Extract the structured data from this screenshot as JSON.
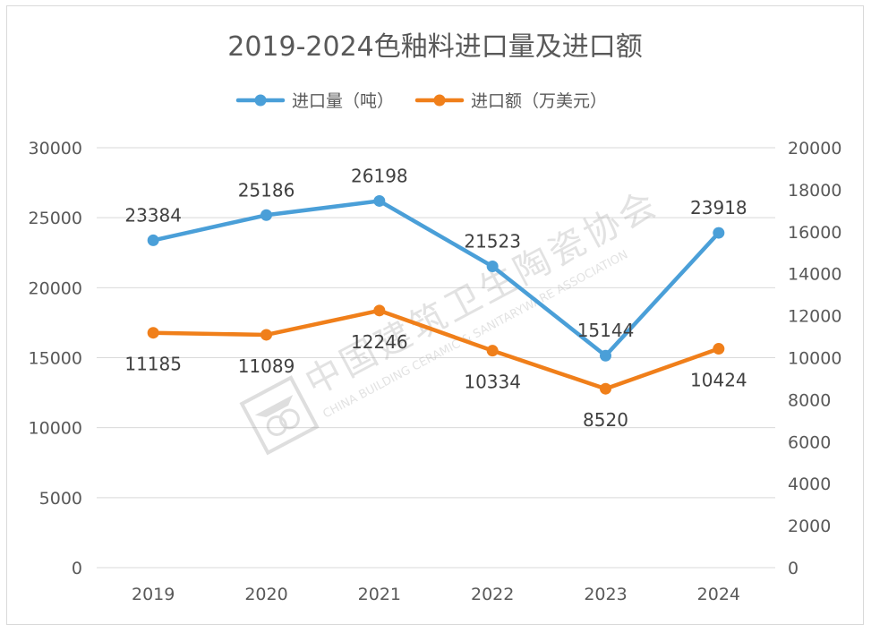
{
  "chart_data": {
    "type": "line",
    "title": "2019-2024色釉料进口量及进口额",
    "categories": [
      "2019",
      "2020",
      "2021",
      "2022",
      "2023",
      "2024"
    ],
    "y_left_ticks": [
      "0",
      "5000",
      "10000",
      "15000",
      "20000",
      "25000",
      "30000"
    ],
    "y_right_ticks": [
      "0",
      "2000",
      "4000",
      "6000",
      "8000",
      "10000",
      "12000",
      "14000",
      "16000",
      "18000",
      "20000"
    ],
    "ylim_left": [
      0,
      30000
    ],
    "ylim_right": [
      0,
      20000
    ],
    "grid": true,
    "legend_position": "top",
    "series": [
      {
        "name": "进口量（吨）",
        "axis": "left",
        "color": "#4a9fd8",
        "values": [
          23384,
          25186,
          26198,
          21523,
          15144,
          23918
        ]
      },
      {
        "name": "进口额（万美元）",
        "axis": "right",
        "color": "#f07f1a",
        "values": [
          11185,
          11089,
          12246,
          10334,
          8520,
          10424
        ]
      }
    ]
  },
  "watermark": {
    "cn": "中国建筑卫生陶瓷协会",
    "en": "CHINA BUILDING CERAMIC & SANITARYWARE ASSOCIATION"
  }
}
